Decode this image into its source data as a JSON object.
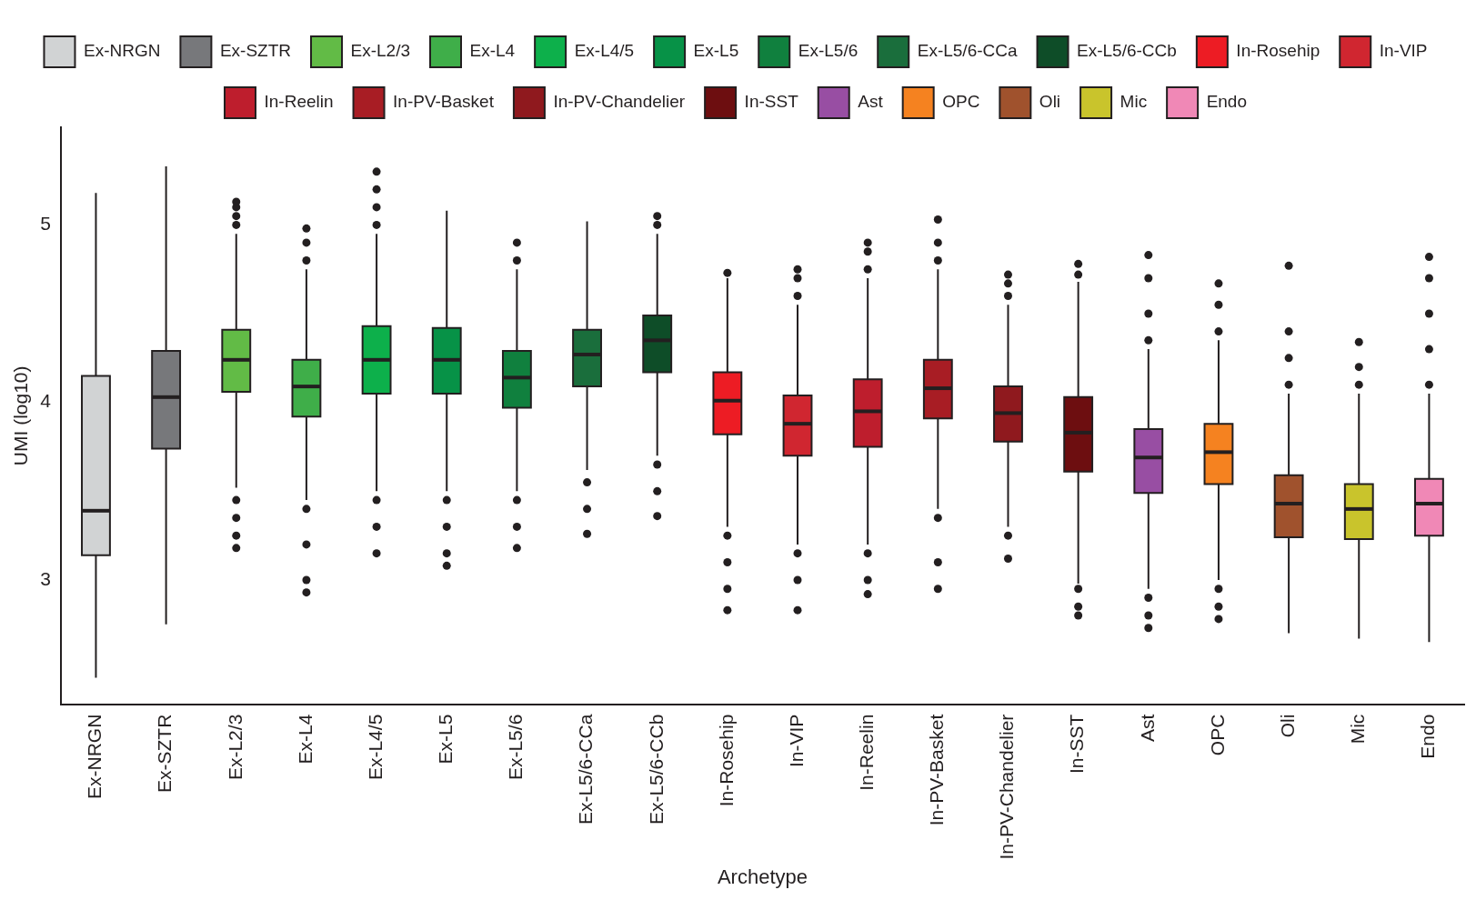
{
  "chart_data": {
    "type": "box",
    "xlabel": "Archetype",
    "ylabel": "UMI (log10)",
    "legend": "top",
    "grid": false,
    "categories": [
      "Ex-NRGN",
      "Ex-SZTR",
      "Ex-L2/3",
      "Ex-L4",
      "Ex-L4/5",
      "Ex-L5",
      "Ex-L5/6",
      "Ex-L5/6-CCa",
      "Ex-L5/6-CCb",
      "In-Rosehip",
      "In-VIP",
      "In-Reelin",
      "In-PV-Basket",
      "In-PV-Chandelier",
      "In-SST",
      "Ast",
      "OPC",
      "Oli",
      "Mic",
      "Endo"
    ],
    "ylim": [
      2.3,
      5.55
    ],
    "yticks": [
      3,
      4,
      5
    ],
    "series": [
      {
        "name": "Ex-NRGN",
        "color": "#d1d3d4",
        "boxes": [
          {
            "low": 2.45,
            "q1": 3.14,
            "median": 3.39,
            "q3": 4.15,
            "high": 5.18
          },
          null,
          null,
          null,
          null,
          null,
          null,
          null,
          null,
          null,
          null,
          null,
          null,
          null,
          null,
          null,
          null,
          null,
          null,
          null
        ]
      },
      {
        "name": "Ex-SZTR",
        "color": "#77787b",
        "boxes": [
          null,
          {
            "low": 2.75,
            "q1": 3.74,
            "median": 4.03,
            "q3": 4.29,
            "high": 5.33
          },
          null,
          null,
          null,
          null,
          null,
          null,
          null,
          null,
          null,
          null,
          null,
          null,
          null,
          null,
          null,
          null,
          null,
          null
        ]
      },
      {
        "name": "Ex-L2/3",
        "color": "#62bb46",
        "boxes": [
          null,
          null,
          {
            "low": 3.52,
            "q1": 4.06,
            "median": 4.24,
            "q3": 4.41,
            "high": 4.95,
            "outliers": [
              5.0,
              5.05,
              5.1,
              5.13,
              3.45,
              3.35,
              3.25,
              3.18
            ]
          },
          null,
          null,
          null,
          null,
          null,
          null,
          null,
          null,
          null,
          null,
          null,
          null,
          null,
          null,
          null,
          null,
          null
        ]
      },
      {
        "name": "Ex-L4",
        "color": "#3fae49",
        "boxes": [
          null,
          null,
          null,
          {
            "low": 3.45,
            "q1": 3.92,
            "median": 4.09,
            "q3": 4.24,
            "high": 4.75,
            "outliers": [
              4.8,
              4.9,
              4.98,
              3.4,
              3.2,
              3.0,
              2.93
            ]
          },
          null,
          null,
          null,
          null,
          null,
          null,
          null,
          null,
          null,
          null,
          null,
          null,
          null,
          null,
          null,
          null
        ]
      },
      {
        "name": "Ex-L4/5",
        "color": "#0db04b",
        "boxes": [
          null,
          null,
          null,
          null,
          {
            "low": 3.5,
            "q1": 4.05,
            "median": 4.24,
            "q3": 4.43,
            "high": 4.95,
            "outliers": [
              5.0,
              5.1,
              5.2,
              5.3,
              3.45,
              3.3,
              3.15
            ]
          },
          null,
          null,
          null,
          null,
          null,
          null,
          null,
          null,
          null,
          null,
          null,
          null,
          null,
          null,
          null
        ]
      },
      {
        "name": "Ex-L5",
        "color": "#079247",
        "boxes": [
          null,
          null,
          null,
          null,
          null,
          {
            "low": 3.5,
            "q1": 4.05,
            "median": 4.24,
            "q3": 4.42,
            "high": 5.08,
            "outliers": [
              3.45,
              3.3,
              3.15,
              3.08
            ]
          },
          null,
          null,
          null,
          null,
          null,
          null,
          null,
          null,
          null,
          null,
          null,
          null,
          null,
          null
        ]
      },
      {
        "name": "Ex-L5/6",
        "color": "#10803e",
        "boxes": [
          null,
          null,
          null,
          null,
          null,
          null,
          {
            "low": 3.5,
            "q1": 3.97,
            "median": 4.14,
            "q3": 4.29,
            "high": 4.75,
            "outliers": [
              4.8,
              4.9,
              3.45,
              3.3,
              3.18
            ]
          },
          null,
          null,
          null,
          null,
          null,
          null,
          null,
          null,
          null,
          null,
          null,
          null,
          null
        ]
      },
      {
        "name": "Ex-L5/6-CCa",
        "color": "#1a6e3c",
        "boxes": [
          null,
          null,
          null,
          null,
          null,
          null,
          null,
          {
            "low": 3.62,
            "q1": 4.09,
            "median": 4.27,
            "q3": 4.41,
            "high": 5.02,
            "outliers": [
              3.55,
              3.4,
              3.26
            ]
          },
          null,
          null,
          null,
          null,
          null,
          null,
          null,
          null,
          null,
          null,
          null,
          null
        ]
      },
      {
        "name": "Ex-L5/6-CCb",
        "color": "#0e4d28",
        "boxes": [
          null,
          null,
          null,
          null,
          null,
          null,
          null,
          null,
          {
            "low": 3.7,
            "q1": 4.17,
            "median": 4.35,
            "q3": 4.49,
            "high": 4.95,
            "outliers": [
              5.0,
              5.05,
              3.65,
              3.5,
              3.36
            ]
          },
          null,
          null,
          null,
          null,
          null,
          null,
          null,
          null,
          null,
          null,
          null
        ]
      },
      {
        "name": "In-Rosehip",
        "color": "#ed1c24",
        "boxes": [
          null,
          null,
          null,
          null,
          null,
          null,
          null,
          null,
          null,
          {
            "low": 3.3,
            "q1": 3.82,
            "median": 4.01,
            "q3": 4.17,
            "high": 4.7,
            "outliers": [
              4.73,
              3.25,
              3.1,
              2.95,
              2.83
            ]
          },
          null,
          null,
          null,
          null,
          null,
          null,
          null,
          null,
          null,
          null
        ]
      },
      {
        "name": "In-VIP",
        "color": "#d02630",
        "boxes": [
          null,
          null,
          null,
          null,
          null,
          null,
          null,
          null,
          null,
          null,
          {
            "low": 3.2,
            "q1": 3.7,
            "median": 3.88,
            "q3": 4.04,
            "high": 4.55,
            "outliers": [
              4.6,
              4.7,
              4.75,
              3.15,
              3.0,
              2.83
            ]
          },
          null,
          null,
          null,
          null,
          null,
          null,
          null,
          null,
          null
        ]
      },
      {
        "name": "In-Reelin",
        "color": "#be1e2d",
        "boxes": [
          null,
          null,
          null,
          null,
          null,
          null,
          null,
          null,
          null,
          null,
          null,
          {
            "low": 3.2,
            "q1": 3.75,
            "median": 3.95,
            "q3": 4.13,
            "high": 4.7,
            "outliers": [
              4.75,
              4.85,
              4.9,
              3.15,
              3.0,
              2.92
            ]
          },
          null,
          null,
          null,
          null,
          null,
          null,
          null,
          null
        ]
      },
      {
        "name": "In-PV-Basket",
        "color": "#a81d24",
        "boxes": [
          null,
          null,
          null,
          null,
          null,
          null,
          null,
          null,
          null,
          null,
          null,
          null,
          {
            "low": 3.4,
            "q1": 3.91,
            "median": 4.08,
            "q3": 4.24,
            "high": 4.75,
            "outliers": [
              4.8,
              4.9,
              5.03,
              3.35,
              3.1,
              2.95
            ]
          },
          null,
          null,
          null,
          null,
          null,
          null,
          null
        ]
      },
      {
        "name": "In-PV-Chandelier",
        "color": "#8f191e",
        "boxes": [
          null,
          null,
          null,
          null,
          null,
          null,
          null,
          null,
          null,
          null,
          null,
          null,
          null,
          {
            "low": 3.3,
            "q1": 3.78,
            "median": 3.94,
            "q3": 4.09,
            "high": 4.55,
            "outliers": [
              4.6,
              4.67,
              4.72,
              3.25,
              3.12
            ]
          },
          null,
          null,
          null,
          null,
          null,
          null
        ]
      },
      {
        "name": "In-SST",
        "color": "#6d0e10",
        "boxes": [
          null,
          null,
          null,
          null,
          null,
          null,
          null,
          null,
          null,
          null,
          null,
          null,
          null,
          null,
          {
            "low": 2.98,
            "q1": 3.61,
            "median": 3.83,
            "q3": 4.03,
            "high": 4.68,
            "outliers": [
              4.72,
              4.78,
              2.95,
              2.85,
              2.8
            ]
          },
          null,
          null,
          null,
          null,
          null
        ]
      },
      {
        "name": "Ast",
        "color": "#984ea3",
        "boxes": [
          null,
          null,
          null,
          null,
          null,
          null,
          null,
          null,
          null,
          null,
          null,
          null,
          null,
          null,
          null,
          {
            "low": 2.95,
            "q1": 3.49,
            "median": 3.69,
            "q3": 3.85,
            "high": 4.3,
            "outliers": [
              4.35,
              4.5,
              4.7,
              4.83,
              2.9,
              2.8,
              2.73
            ]
          },
          null,
          null,
          null,
          null
        ]
      },
      {
        "name": "OPC",
        "color": "#f58220",
        "boxes": [
          null,
          null,
          null,
          null,
          null,
          null,
          null,
          null,
          null,
          null,
          null,
          null,
          null,
          null,
          null,
          null,
          {
            "low": 3.0,
            "q1": 3.54,
            "median": 3.72,
            "q3": 3.88,
            "high": 4.35,
            "outliers": [
              4.4,
              4.55,
              4.67,
              2.95,
              2.85,
              2.78
            ]
          },
          null,
          null,
          null
        ]
      },
      {
        "name": "Oli",
        "color": "#a0522d",
        "boxes": [
          null,
          null,
          null,
          null,
          null,
          null,
          null,
          null,
          null,
          null,
          null,
          null,
          null,
          null,
          null,
          null,
          null,
          {
            "low": 2.7,
            "q1": 3.24,
            "median": 3.43,
            "q3": 3.59,
            "high": 4.05,
            "outliers": [
              4.1,
              4.25,
              4.4,
              4.77
            ]
          },
          null,
          null
        ]
      },
      {
        "name": "Mic",
        "color": "#c9c42c",
        "boxes": [
          null,
          null,
          null,
          null,
          null,
          null,
          null,
          null,
          null,
          null,
          null,
          null,
          null,
          null,
          null,
          null,
          null,
          null,
          {
            "low": 2.67,
            "q1": 3.23,
            "median": 3.4,
            "q3": 3.54,
            "high": 4.05,
            "outliers": [
              4.1,
              4.2,
              4.34
            ]
          },
          null
        ]
      },
      {
        "name": "Endo",
        "color": "#f088b6",
        "boxes": [
          null,
          null,
          null,
          null,
          null,
          null,
          null,
          null,
          null,
          null,
          null,
          null,
          null,
          null,
          null,
          null,
          null,
          null,
          null,
          {
            "low": 2.65,
            "q1": 3.25,
            "median": 3.43,
            "q3": 3.57,
            "high": 4.05,
            "outliers": [
              4.1,
              4.3,
              4.5,
              4.7,
              4.82
            ]
          }
        ]
      }
    ]
  }
}
